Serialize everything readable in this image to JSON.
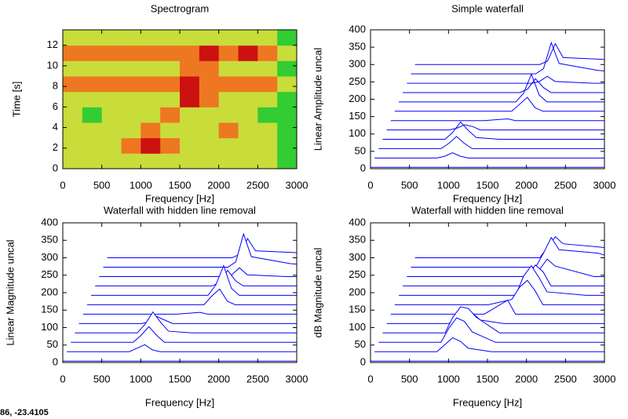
{
  "chart_data": [
    {
      "type": "heatmap",
      "title": "Spectrogram",
      "xlabel": "Frequency [Hz]",
      "ylabel": "Time [s]",
      "xlim": [
        0,
        3000
      ],
      "xticks": [
        0,
        500,
        1000,
        1500,
        2000,
        2500,
        3000
      ],
      "ylim": [
        0,
        13.5
      ],
      "yticks": [
        0,
        2,
        4,
        6,
        8,
        10,
        12
      ],
      "xbins": [
        0,
        250,
        500,
        750,
        1000,
        1250,
        1500,
        1750,
        2000,
        2250,
        2500,
        2750,
        3000
      ],
      "ybins": [
        0,
        1.5,
        3,
        4.5,
        6,
        7.5,
        9,
        10.5,
        12,
        13.5
      ],
      "colors": [
        "#33cc33",
        "#c8dc3a",
        "#ee7722",
        "#cc1111"
      ],
      "values": [
        [
          1,
          1,
          1,
          1,
          1,
          1,
          1,
          1,
          1,
          1,
          1,
          0
        ],
        [
          1,
          1,
          1,
          2,
          3,
          2,
          1,
          1,
          1,
          1,
          1,
          0
        ],
        [
          1,
          1,
          1,
          1,
          2,
          1,
          1,
          1,
          2,
          1,
          1,
          0
        ],
        [
          1,
          0,
          1,
          1,
          1,
          2,
          1,
          1,
          1,
          1,
          0,
          0
        ],
        [
          1,
          1,
          1,
          1,
          1,
          1,
          3,
          2,
          1,
          1,
          1,
          0
        ],
        [
          2,
          2,
          2,
          2,
          2,
          2,
          3,
          2,
          2,
          2,
          2,
          1
        ],
        [
          1,
          1,
          1,
          1,
          1,
          1,
          2,
          2,
          1,
          1,
          1,
          0
        ],
        [
          2,
          2,
          2,
          2,
          2,
          2,
          2,
          3,
          2,
          3,
          2,
          1
        ],
        [
          1,
          1,
          1,
          1,
          1,
          1,
          1,
          1,
          1,
          1,
          1,
          0
        ]
      ]
    },
    {
      "type": "waterfall",
      "hidden": false,
      "title": "Simple waterfall",
      "xlabel": "Frequency [Hz]",
      "ylabel": "Linear Amplitude uncal",
      "color": "#0000ff",
      "xlim": [
        0,
        3000
      ],
      "xticks": [
        0,
        500,
        1000,
        1500,
        2000,
        2500,
        3000
      ],
      "ylim": [
        0,
        400
      ],
      "yticks": [
        0,
        50,
        100,
        150,
        200,
        250,
        300,
        350,
        400
      ],
      "x": [
        0,
        200,
        400,
        600,
        800,
        900,
        1000,
        1100,
        1200,
        1500,
        1600,
        1700,
        1800,
        1900,
        2400,
        3000
      ],
      "series": [
        {
          "values": [
            0,
            0,
            0,
            0,
            0,
            0,
            0,
            0,
            0,
            0,
            0,
            0,
            0,
            0,
            0,
            0
          ]
        },
        {
          "values": [
            0,
            0,
            0,
            0,
            0,
            5,
            15,
            5,
            0,
            0,
            0,
            0,
            0,
            0,
            0,
            0
          ]
        },
        {
          "values": [
            0,
            0,
            0,
            0,
            0,
            15,
            35,
            15,
            0,
            0,
            0,
            0,
            0,
            0,
            0,
            0
          ]
        },
        {
          "values": [
            0,
            0,
            0,
            0,
            0,
            20,
            50,
            25,
            5,
            0,
            0,
            0,
            0,
            0,
            0,
            0
          ]
        },
        {
          "values": [
            0,
            0,
            0,
            0,
            0,
            5,
            15,
            10,
            0,
            0,
            0,
            0,
            0,
            0,
            0,
            0
          ]
        },
        {
          "values": [
            0,
            0,
            0,
            0,
            0,
            0,
            0,
            0,
            0,
            5,
            0,
            0,
            0,
            0,
            0,
            0
          ]
        },
        {
          "values": [
            0,
            0,
            0,
            0,
            0,
            0,
            0,
            0,
            0,
            0,
            20,
            40,
            10,
            0,
            0,
            0
          ]
        },
        {
          "values": [
            0,
            0,
            0,
            0,
            0,
            0,
            0,
            0,
            0,
            0,
            25,
            80,
            20,
            0,
            0,
            0
          ]
        },
        {
          "values": [
            0,
            0,
            0,
            0,
            0,
            0,
            0,
            0,
            0,
            0,
            10,
            40,
            15,
            0,
            0,
            0
          ]
        },
        {
          "values": [
            0,
            0,
            0,
            0,
            0,
            0,
            0,
            0,
            0,
            0,
            0,
            5,
            20,
            5,
            0,
            0
          ]
        },
        {
          "values": [
            0,
            0,
            0,
            0,
            0,
            0,
            0,
            0,
            0,
            0,
            0,
            15,
            90,
            30,
            10,
            0
          ]
        },
        {
          "values": [
            0,
            0,
            0,
            0,
            0,
            0,
            0,
            0,
            0,
            0,
            0,
            10,
            60,
            20,
            15,
            0
          ]
        }
      ]
    },
    {
      "type": "waterfall",
      "hidden": true,
      "title": "Waterfall with hidden line removal",
      "xlabel": "Frequency [Hz]",
      "ylabel": "Linear Magnitude uncal",
      "color": "#0000ff",
      "xlim": [
        0,
        3000
      ],
      "xticks": [
        0,
        500,
        1000,
        1500,
        2000,
        2500,
        3000
      ],
      "ylim": [
        0,
        400
      ],
      "yticks": [
        0,
        50,
        100,
        150,
        200,
        250,
        300,
        350,
        400
      ],
      "x": [
        0,
        200,
        400,
        600,
        800,
        900,
        1000,
        1100,
        1200,
        1500,
        1600,
        1700,
        1800,
        1900,
        2400,
        3000
      ],
      "series": [
        {
          "values": [
            0,
            0,
            0,
            0,
            0,
            0,
            0,
            0,
            0,
            0,
            0,
            0,
            0,
            0,
            0,
            0
          ]
        },
        {
          "values": [
            0,
            0,
            0,
            0,
            0,
            10,
            20,
            5,
            0,
            0,
            0,
            0,
            0,
            0,
            0,
            0
          ]
        },
        {
          "values": [
            0,
            0,
            0,
            0,
            0,
            20,
            45,
            20,
            0,
            0,
            0,
            0,
            0,
            0,
            0,
            0
          ]
        },
        {
          "values": [
            0,
            0,
            0,
            0,
            0,
            25,
            60,
            30,
            5,
            0,
            0,
            0,
            0,
            0,
            0,
            0
          ]
        },
        {
          "values": [
            0,
            0,
            0,
            0,
            0,
            5,
            20,
            10,
            0,
            0,
            0,
            0,
            0,
            0,
            0,
            0
          ]
        },
        {
          "values": [
            0,
            0,
            0,
            0,
            0,
            0,
            0,
            0,
            0,
            5,
            0,
            0,
            0,
            0,
            0,
            0
          ]
        },
        {
          "values": [
            0,
            0,
            0,
            0,
            0,
            0,
            0,
            0,
            0,
            0,
            25,
            45,
            10,
            0,
            0,
            0
          ]
        },
        {
          "values": [
            0,
            0,
            0,
            0,
            0,
            0,
            0,
            0,
            0,
            0,
            30,
            85,
            20,
            0,
            0,
            0
          ]
        },
        {
          "values": [
            0,
            0,
            0,
            0,
            0,
            0,
            0,
            0,
            0,
            0,
            10,
            45,
            15,
            0,
            0,
            0
          ]
        },
        {
          "values": [
            0,
            0,
            0,
            0,
            0,
            0,
            0,
            0,
            0,
            0,
            0,
            5,
            25,
            5,
            0,
            0
          ]
        },
        {
          "values": [
            0,
            0,
            0,
            0,
            0,
            0,
            0,
            0,
            0,
            0,
            0,
            15,
            95,
            30,
            10,
            0
          ]
        },
        {
          "values": [
            0,
            0,
            0,
            0,
            0,
            0,
            0,
            0,
            0,
            0,
            0,
            10,
            55,
            20,
            15,
            0
          ]
        }
      ]
    },
    {
      "type": "waterfall",
      "hidden": true,
      "title": "Waterfall with hidden line removal",
      "xlabel": "Frequency [Hz]",
      "ylabel": "dB Magnitude uncal",
      "color": "#0000ff",
      "xlim": [
        0,
        3000
      ],
      "xticks": [
        0,
        500,
        1000,
        1500,
        2000,
        2500,
        3000
      ],
      "ylim": [
        0,
        400
      ],
      "yticks": [
        0,
        50,
        100,
        150,
        200,
        250,
        300,
        350,
        400
      ],
      "x": [
        0,
        200,
        400,
        600,
        800,
        900,
        1000,
        1100,
        1200,
        1500,
        1600,
        1700,
        1800,
        1900,
        2400,
        3000
      ],
      "series": [
        {
          "values": [
            0,
            0,
            0,
            0,
            0,
            0,
            0,
            0,
            0,
            0,
            0,
            0,
            0,
            0,
            0,
            0
          ]
        },
        {
          "values": [
            0,
            0,
            0,
            0,
            0,
            20,
            40,
            30,
            10,
            0,
            0,
            0,
            0,
            0,
            0,
            0
          ]
        },
        {
          "values": [
            0,
            0,
            0,
            0,
            0,
            40,
            70,
            60,
            30,
            0,
            0,
            0,
            0,
            0,
            0,
            0
          ]
        },
        {
          "values": [
            0,
            0,
            0,
            0,
            0,
            45,
            75,
            70,
            45,
            0,
            0,
            0,
            0,
            0,
            0,
            0
          ]
        },
        {
          "values": [
            0,
            0,
            0,
            0,
            0,
            20,
            40,
            30,
            10,
            0,
            0,
            0,
            0,
            0,
            0,
            0
          ]
        },
        {
          "values": [
            0,
            0,
            0,
            0,
            0,
            0,
            0,
            0,
            0,
            40,
            0,
            0,
            0,
            0,
            0,
            0
          ]
        },
        {
          "values": [
            0,
            0,
            0,
            0,
            0,
            0,
            0,
            0,
            0,
            15,
            50,
            70,
            40,
            0,
            0,
            0
          ]
        },
        {
          "values": [
            0,
            0,
            0,
            0,
            0,
            0,
            0,
            0,
            0,
            0,
            55,
            85,
            50,
            10,
            0,
            0
          ]
        },
        {
          "values": [
            0,
            0,
            0,
            0,
            0,
            0,
            0,
            0,
            0,
            0,
            30,
            60,
            40,
            0,
            0,
            0
          ]
        },
        {
          "values": [
            0,
            0,
            0,
            0,
            0,
            0,
            0,
            0,
            0,
            0,
            0,
            20,
            50,
            30,
            0,
            0
          ]
        },
        {
          "values": [
            0,
            0,
            0,
            0,
            0,
            0,
            0,
            0,
            0,
            0,
            0,
            40,
            85,
            50,
            40,
            0
          ]
        },
        {
          "values": [
            0,
            0,
            0,
            0,
            0,
            0,
            0,
            0,
            0,
            0,
            0,
            30,
            60,
            40,
            30,
            0
          ]
        }
      ]
    }
  ],
  "status_text": "86, -23.4105"
}
